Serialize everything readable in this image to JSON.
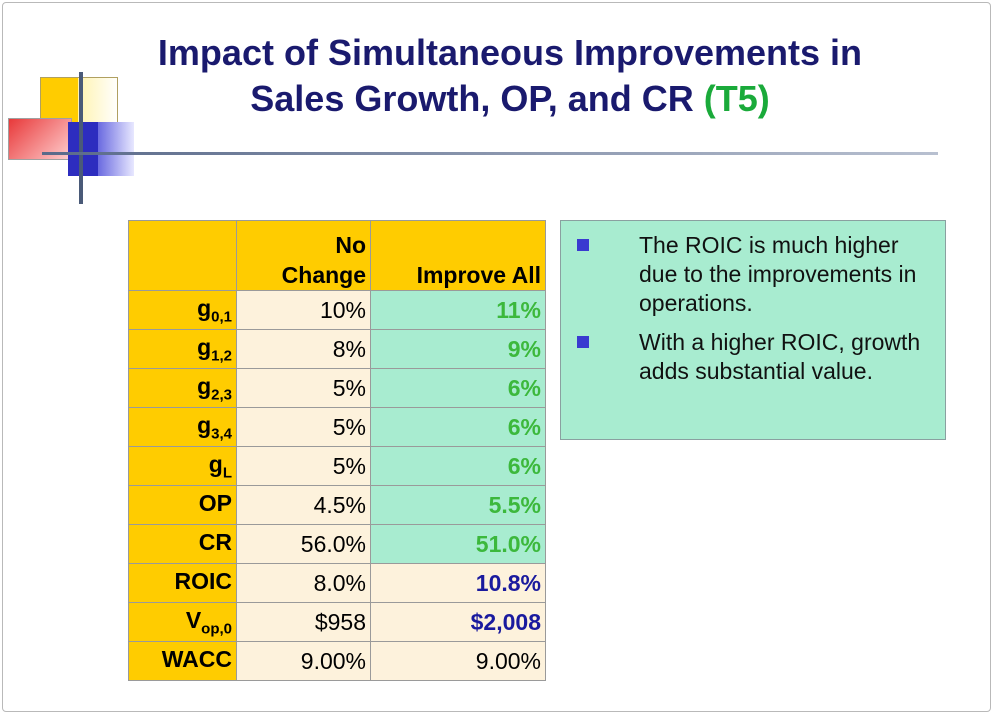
{
  "title": {
    "line1": "Impact of Simultaneous Improvements in",
    "line2": "Sales Growth, OP, and CR",
    "tag": "(T5)"
  },
  "table": {
    "headers": {
      "no_change_line1": "No",
      "no_change_line2": "Change",
      "improve_all": "Improve All"
    },
    "rows": [
      {
        "label": "g",
        "sub": "0,1",
        "no_change": "10%",
        "improve_all": "11%"
      },
      {
        "label": "g",
        "sub": "1,2",
        "no_change": "8%",
        "improve_all": "9%"
      },
      {
        "label": "g",
        "sub": "2,3",
        "no_change": "5%",
        "improve_all": "6%"
      },
      {
        "label": "g",
        "sub": "3,4",
        "no_change": "5%",
        "improve_all": "6%"
      },
      {
        "label": "g",
        "sub": "L",
        "no_change": "5%",
        "improve_all": "6%"
      },
      {
        "label": "OP",
        "sub": "",
        "no_change": "4.5%",
        "improve_all": "5.5%"
      },
      {
        "label": "CR",
        "sub": "",
        "no_change": "56.0%",
        "improve_all": "51.0%"
      },
      {
        "label": "ROIC",
        "sub": "",
        "no_change": "8.0%",
        "improve_all": "10.8%"
      },
      {
        "label": "V",
        "sub": "op,0",
        "no_change": "$958",
        "improve_all": "$2,008"
      },
      {
        "label": "WACC",
        "sub": "",
        "no_change": "9.00%",
        "improve_all": "9.00%"
      }
    ]
  },
  "notes": [
    "The ROIC is much higher due to the improvements in operations.",
    "With a higher ROIC, growth adds substantial value."
  ],
  "colors": {
    "title": "#1a1a6e",
    "tag": "#1aaa3a",
    "header": "#ffcc00",
    "highlight": "#a8ecd0",
    "green_text": "#3cb83c",
    "blue_text": "#1a1a9e"
  }
}
